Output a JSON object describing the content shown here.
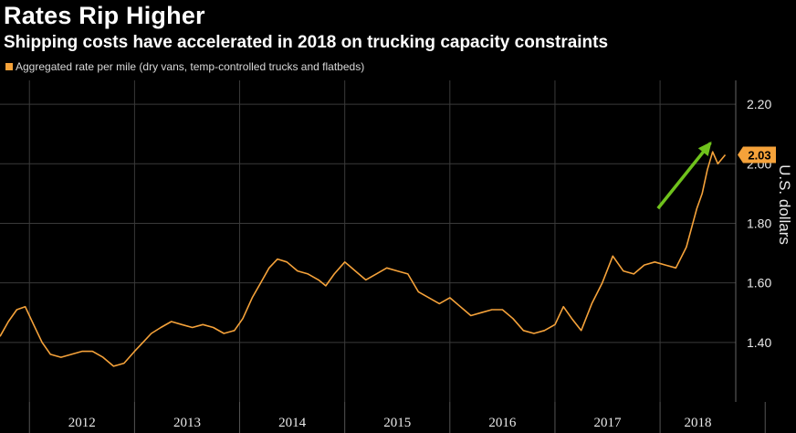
{
  "title": "Rates Rip Higher",
  "subtitle": "Shipping costs have accelerated in 2018 on trucking capacity constraints",
  "colors": {
    "series": "#f5a23a",
    "arrow": "#6fc21c",
    "background": "#000000",
    "grid": "#3a3a3a"
  },
  "chart_data": {
    "type": "line",
    "title": "Rates Rip Higher",
    "subtitle": "Shipping costs have accelerated in 2018 on trucking capacity constraints",
    "ylabel": "U.S. dollars",
    "ylim": [
      1.2,
      2.28
    ],
    "y_ticks": [
      1.4,
      1.6,
      1.8,
      2.0,
      2.2
    ],
    "y_tick_labels": [
      "1.40",
      "1.60",
      "1.80",
      "2.00",
      "2.20"
    ],
    "x_ticks": [
      "2012",
      "2013",
      "2014",
      "2015",
      "2016",
      "2017",
      "2018"
    ],
    "xlim": [
      2011.72,
      2018.72
    ],
    "grid": true,
    "legend_position": "top-left",
    "last_value_label": "2.03",
    "series": [
      {
        "name": "Aggregated rate per mile (dry vans, temp-controlled trucks and flatbeds)",
        "x": [
          2011.72,
          2011.8,
          2011.88,
          2011.96,
          2012.04,
          2012.12,
          2012.2,
          2012.3,
          2012.4,
          2012.5,
          2012.6,
          2012.7,
          2012.8,
          2012.9,
          2013.0,
          2013.08,
          2013.16,
          2013.25,
          2013.35,
          2013.45,
          2013.55,
          2013.65,
          2013.75,
          2013.85,
          2013.95,
          2014.03,
          2014.12,
          2014.2,
          2014.28,
          2014.36,
          2014.45,
          2014.55,
          2014.65,
          2014.75,
          2014.82,
          2014.9,
          2015.0,
          2015.1,
          2015.2,
          2015.3,
          2015.4,
          2015.5,
          2015.6,
          2015.7,
          2015.8,
          2015.9,
          2016.0,
          2016.1,
          2016.2,
          2016.3,
          2016.4,
          2016.5,
          2016.6,
          2016.7,
          2016.8,
          2016.9,
          2017.0,
          2017.08,
          2017.16,
          2017.25,
          2017.35,
          2017.45,
          2017.55,
          2017.65,
          2017.75,
          2017.85,
          2017.95,
          2018.05,
          2018.15,
          2018.25,
          2018.35,
          2018.4,
          2018.45,
          2018.5,
          2018.55,
          2018.62
        ],
        "values": [
          1.42,
          1.47,
          1.51,
          1.52,
          1.46,
          1.4,
          1.36,
          1.35,
          1.36,
          1.37,
          1.37,
          1.35,
          1.32,
          1.33,
          1.37,
          1.4,
          1.43,
          1.45,
          1.47,
          1.46,
          1.45,
          1.46,
          1.45,
          1.43,
          1.44,
          1.48,
          1.55,
          1.6,
          1.65,
          1.68,
          1.67,
          1.64,
          1.63,
          1.61,
          1.59,
          1.63,
          1.67,
          1.64,
          1.61,
          1.63,
          1.65,
          1.64,
          1.63,
          1.57,
          1.55,
          1.53,
          1.55,
          1.52,
          1.49,
          1.5,
          1.51,
          1.51,
          1.48,
          1.44,
          1.43,
          1.44,
          1.46,
          1.52,
          1.48,
          1.44,
          1.53,
          1.6,
          1.69,
          1.64,
          1.63,
          1.66,
          1.67,
          1.66,
          1.65,
          1.72,
          1.85,
          1.9,
          1.98,
          2.04,
          2.0,
          2.03
        ]
      }
    ],
    "annotations": [
      {
        "type": "arrow",
        "from": [
          2017.98,
          1.85
        ],
        "to": [
          2018.48,
          2.07
        ]
      }
    ]
  }
}
